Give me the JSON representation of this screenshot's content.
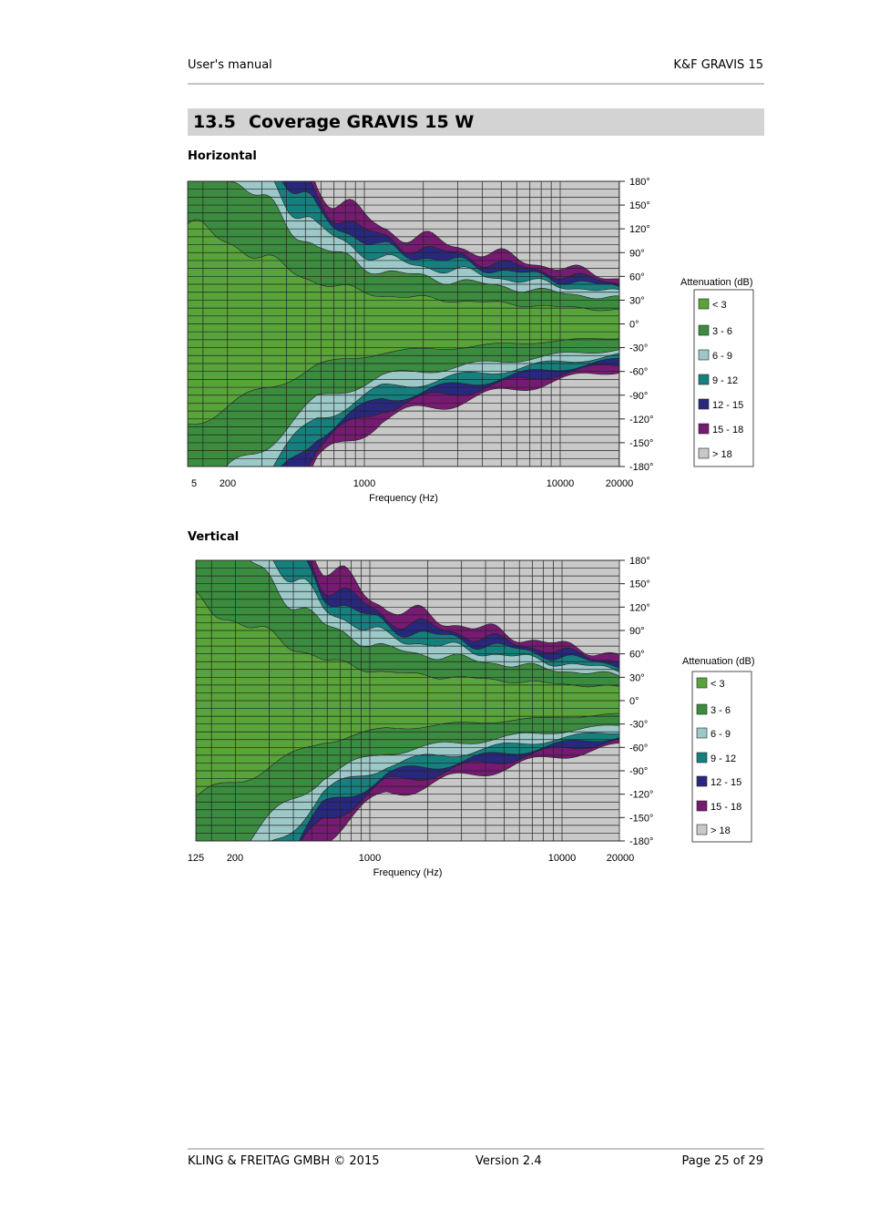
{
  "header": {
    "left": "User's manual",
    "right": "K&F GRAVIS  15"
  },
  "section": {
    "number": "13.5",
    "title": "Coverage GRAVIS 15 W"
  },
  "plots": [
    {
      "heading": "Horizontal",
      "xticks": [
        "5",
        "200",
        "1000",
        "10000",
        "20000"
      ],
      "xlabel": "Frequency (Hz)",
      "yticks": [
        "180°",
        "150°",
        "120°",
        "90°",
        "60°",
        "30°",
        "0°",
        "-30°",
        "-60°",
        "-90°",
        "-120°",
        "-150°",
        "-180°"
      ],
      "legend_title": "Attenuation (dB)",
      "legend": [
        "< 3",
        "3 - 6",
        "6 - 9",
        "9 - 12",
        "12 - 15",
        "15 - 18",
        "> 18"
      ]
    },
    {
      "heading": "Vertical",
      "xticks": [
        "125",
        "200",
        "1000",
        "10000",
        "20000"
      ],
      "xlabel": "Frequency (Hz)",
      "yticks": [
        "180°",
        "150°",
        "120°",
        "90°",
        "60°",
        "30°",
        "0°",
        "-30°",
        "-60°",
        "-90°",
        "-120°",
        "-150°",
        "-180°"
      ],
      "legend_title": "Attenuation (dB)",
      "legend": [
        "< 3",
        "3 - 6",
        "6 - 9",
        "9 - 12",
        "12 - 15",
        "15 - 18",
        "> 18"
      ]
    }
  ],
  "footer": {
    "left": "KLING & FREITAG GMBH © 2015",
    "center": "Version 2.4",
    "right": "Page 25 of 29"
  }
}
